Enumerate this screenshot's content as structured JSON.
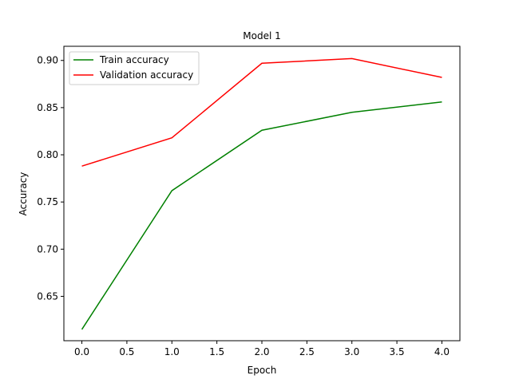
{
  "chart_data": {
    "type": "line",
    "title": "Model 1",
    "xlabel": "Epoch",
    "ylabel": "Accuracy",
    "x": [
      0,
      1,
      2,
      3,
      4
    ],
    "xlim": [
      -0.2,
      4.2
    ],
    "ylim": [
      0.603,
      0.915
    ],
    "xticks": [
      0.0,
      0.5,
      1.0,
      1.5,
      2.0,
      2.5,
      3.0,
      3.5,
      4.0
    ],
    "xtick_labels": [
      "0.0",
      "0.5",
      "1.0",
      "1.5",
      "2.0",
      "2.5",
      "3.0",
      "3.5",
      "4.0"
    ],
    "yticks": [
      0.65,
      0.7,
      0.75,
      0.8,
      0.85,
      0.9
    ],
    "ytick_labels": [
      "0.65",
      "0.70",
      "0.75",
      "0.80",
      "0.85",
      "0.90"
    ],
    "grid": false,
    "legend_position": "top-left",
    "series": [
      {
        "name": "Train accuracy",
        "color": "#008000",
        "values": [
          0.615,
          0.762,
          0.826,
          0.845,
          0.856
        ]
      },
      {
        "name": "Validation accuracy",
        "color": "#ff0000",
        "values": [
          0.788,
          0.818,
          0.897,
          0.902,
          0.882
        ]
      }
    ]
  }
}
